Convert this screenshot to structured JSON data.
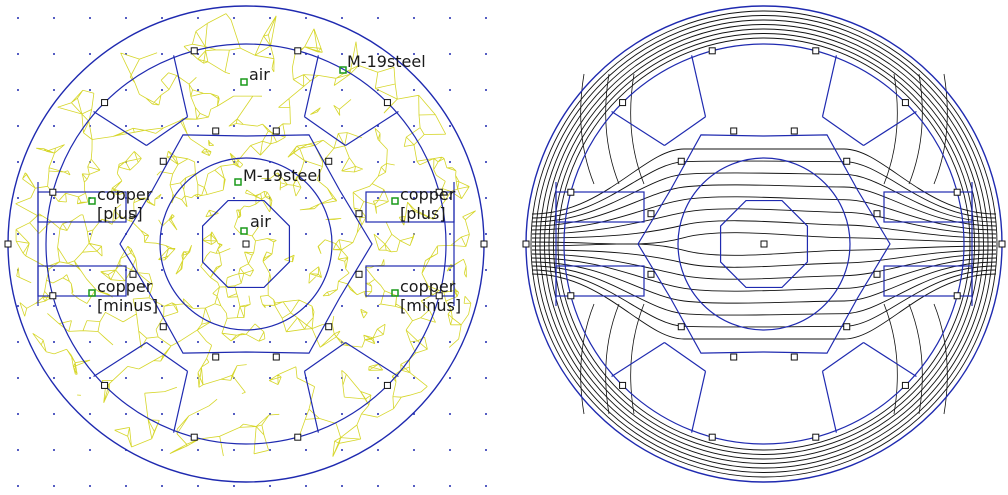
{
  "colors": {
    "geometry": "#1f2ab0",
    "mesh": "#d6d62a",
    "mesh_dense": "#c9c930",
    "contour": "#111111",
    "grid_dot": "#1f2ab0",
    "material_marker": "#1a9a1a",
    "node": "#111111"
  },
  "left_panel": {
    "labels": {
      "air_outer": "air",
      "steel_stator": "M-19steel",
      "steel_rotor": "M-19steel",
      "air_inner": "air",
      "copper_left_plus_1": "copper",
      "copper_left_plus_2": "[plus]",
      "copper_right_plus_1": "copper",
      "copper_right_plus_2": "[plus]",
      "copper_left_minus_1": "copper",
      "copper_left_minus_2": "[minus]",
      "copper_right_minus_1": "copper",
      "copper_right_minus_2": "[minus]"
    }
  },
  "right_panel": {
    "contour_levels": 16
  }
}
